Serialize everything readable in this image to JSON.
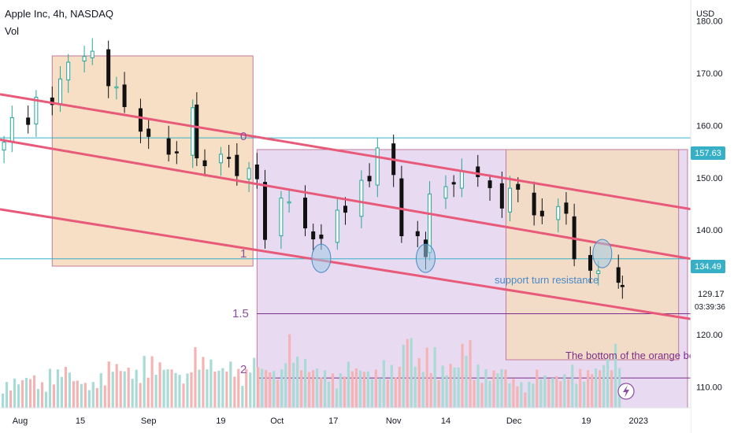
{
  "header": {
    "title": "Apple Inc, 4h, NASDAQ",
    "volume_label": "Vol"
  },
  "axis": {
    "currency": "USD",
    "price_ticks": [
      "180.00",
      "170.00",
      "160.00",
      "150.00",
      "140.00",
      "120.00",
      "110.00"
    ],
    "date_ticks": [
      "Aug",
      "15",
      "Sep",
      "19",
      "Oct",
      "17",
      "Nov",
      "14",
      "Dec",
      "19",
      "2023"
    ]
  },
  "price_tags": {
    "upper_line": "157.63",
    "lower_line": "134.49",
    "last_price": "129.17",
    "countdown": "03:39:36"
  },
  "annotations": {
    "level_0": "0",
    "level_1": "1",
    "level_1_5": "1.5",
    "level_2": "2",
    "support_note": "support turn resistance",
    "box_note": "The bottom of the orange box."
  },
  "colors": {
    "up": "#26a69a",
    "down": "#111111",
    "channel": "#e85a7a",
    "level_line": "#37b0c7",
    "fib_line": "#7b2e8e",
    "orange_box": "#f5dcbf",
    "purple_box": "#e6d6ef",
    "vol_up": "#a8dbd6",
    "vol_down": "#f5b4b4",
    "tag_bg": "#37b0c7",
    "note_text": "#4a8ac8",
    "box_note_text": "#7b2e8e"
  },
  "icons": {
    "alert": "lightning-icon"
  },
  "chart_data": {
    "type": "candlestick",
    "title": "Apple Inc, 4h, NASDAQ",
    "ylabel": "USD",
    "ylim": [
      106,
      184
    ],
    "x_range": [
      "2022-07-26",
      "2023-01-14"
    ],
    "series": [
      {
        "name": "",
        "kind": "close",
        "points": [
          [
            "2022-07-27",
            156.8
          ],
          [
            "2022-07-29",
            161.5
          ],
          [
            "2022-08-02",
            160.2
          ],
          [
            "2022-08-04",
            165.4
          ],
          [
            "2022-08-08",
            164.0
          ],
          [
            "2022-08-10",
            168.9
          ],
          [
            "2022-08-12",
            172.1
          ],
          [
            "2022-08-16",
            173.2
          ],
          [
            "2022-08-18",
            174.2
          ],
          [
            "2022-08-22",
            167.6
          ],
          [
            "2022-08-24",
            167.4
          ],
          [
            "2022-08-26",
            163.6
          ],
          [
            "2022-08-30",
            158.9
          ],
          [
            "2022-09-01",
            157.9
          ],
          [
            "2022-09-06",
            154.5
          ],
          [
            "2022-09-08",
            154.8
          ],
          [
            "2022-09-12",
            163.4
          ],
          [
            "2022-09-13",
            153.8
          ],
          [
            "2022-09-15",
            152.3
          ],
          [
            "2022-09-19",
            154.5
          ],
          [
            "2022-09-21",
            153.7
          ],
          [
            "2022-09-23",
            150.4
          ],
          [
            "2022-09-26",
            151.8
          ],
          [
            "2022-09-28",
            149.8
          ],
          [
            "2022-09-30",
            138.2
          ],
          [
            "2022-10-04",
            146.1
          ],
          [
            "2022-10-06",
            145.4
          ],
          [
            "2022-10-10",
            140.4
          ],
          [
            "2022-10-12",
            138.3
          ],
          [
            "2022-10-14",
            138.4
          ],
          [
            "2022-10-18",
            143.8
          ],
          [
            "2022-10-20",
            143.4
          ],
          [
            "2022-10-24",
            149.5
          ],
          [
            "2022-10-26",
            149.4
          ],
          [
            "2022-10-28",
            155.7
          ],
          [
            "2022-11-01",
            150.6
          ],
          [
            "2022-11-03",
            138.9
          ],
          [
            "2022-11-07",
            138.9
          ],
          [
            "2022-11-09",
            134.9
          ],
          [
            "2022-11-10",
            146.9
          ],
          [
            "2022-11-14",
            148.3
          ],
          [
            "2022-11-16",
            148.8
          ],
          [
            "2022-11-18",
            151.3
          ],
          [
            "2022-11-22",
            150.2
          ],
          [
            "2022-11-25",
            148.1
          ],
          [
            "2022-11-28",
            144.2
          ],
          [
            "2022-11-30",
            148.0
          ],
          [
            "2022-12-02",
            147.8
          ],
          [
            "2022-12-06",
            142.9
          ],
          [
            "2022-12-08",
            142.7
          ],
          [
            "2022-12-12",
            144.5
          ],
          [
            "2022-12-14",
            143.2
          ],
          [
            "2022-12-16",
            134.5
          ],
          [
            "2022-12-20",
            132.3
          ],
          [
            "2022-12-22",
            132.2
          ],
          [
            "2022-12-27",
            130.0
          ],
          [
            "2022-12-28",
            129.17
          ]
        ]
      },
      {
        "name": "Vol",
        "kind": "volume_relative",
        "values": [
          0.3,
          0.35,
          0.4,
          0.3,
          0.45,
          0.5,
          0.35,
          0.3,
          0.4,
          0.55,
          0.5,
          0.45,
          0.6,
          0.55,
          0.5,
          0.4,
          0.7,
          0.6,
          0.5,
          0.55,
          0.45,
          0.6,
          0.5,
          0.45,
          0.85,
          0.6,
          0.5,
          0.45,
          0.4,
          0.55,
          0.5,
          0.45,
          0.55,
          0.5,
          0.9,
          0.6,
          0.7,
          0.5,
          0.55,
          0.8,
          0.5,
          0.45,
          0.5,
          0.35,
          0.3,
          0.45,
          0.4,
          0.4,
          0.5,
          0.45,
          0.5,
          0.6,
          0.75,
          0.6,
          0.55,
          0.4,
          0.3
        ]
      }
    ],
    "levels": [
      157.63,
      134.49,
      124.0,
      111.7
    ],
    "grid": false,
    "legend": "top-left"
  }
}
